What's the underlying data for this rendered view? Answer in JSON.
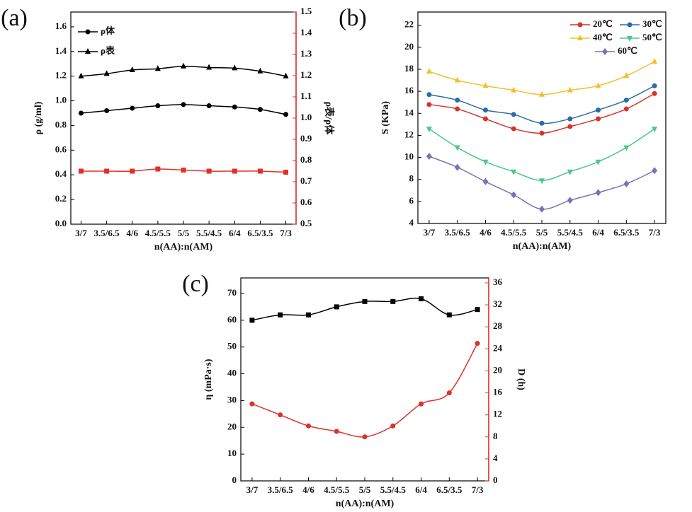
{
  "chart_data": [
    {
      "type": "line",
      "title": "(a)",
      "x_label": "n(AA):n(AM)",
      "y_label": "ρ (g/ml)",
      "y2_label": "ρ表/ρ体",
      "categories": [
        "3/7",
        "3.5/6.5",
        "4/6",
        "4.5/5.5",
        "5/5",
        "5.5/4.5",
        "6/4",
        "6.5/3.5",
        "7/3"
      ],
      "ylim": [
        0,
        1.72
      ],
      "yticks": [
        {
          "value": 0,
          "label": "0.0"
        },
        0.2,
        0.4,
        0.6,
        0.8,
        {
          "value": 1,
          "label": "1.0"
        },
        1.2,
        1.4,
        1.6
      ],
      "y2lim": [
        0.5,
        1.5
      ],
      "y2ticks": [
        0.5,
        0.6,
        0.7,
        0.8,
        0.9,
        {
          "value": 1,
          "label": "1.0"
        },
        1.1,
        1.2,
        1.3,
        1.4,
        1.5
      ],
      "y2_color": "#e0302a",
      "legend": "upper left",
      "series": [
        {
          "name": "ρ体",
          "color": "#000000",
          "marker": "circle",
          "values": [
            0.9,
            0.92,
            0.94,
            0.96,
            0.97,
            0.96,
            0.95,
            0.93,
            0.89
          ]
        },
        {
          "name": "ρ表",
          "color": "#000000",
          "marker": "triangle",
          "values": [
            1.2,
            1.22,
            1.25,
            1.26,
            1.28,
            1.27,
            1.265,
            1.24,
            1.2
          ]
        },
        {
          "color": "#e0302a",
          "marker": "square",
          "axis": "y2",
          "values": [
            0.75,
            0.75,
            0.75,
            0.76,
            0.755,
            0.75,
            0.75,
            0.75,
            0.745
          ]
        }
      ]
    },
    {
      "type": "line",
      "title": "(b)",
      "x_label": "n(AA):n(AM)",
      "y_label": "S (KPa)",
      "categories": [
        "3/7",
        "3.5/6.5",
        "4/6",
        "4.5/5.5",
        "5/5",
        "5.5/4.5",
        "6/4",
        "6.5/3.5",
        "7/3"
      ],
      "ylim": [
        4,
        23.2
      ],
      "yticks": [
        4,
        6,
        8,
        10,
        12,
        14,
        16,
        18,
        20,
        22
      ],
      "legend": "upper right",
      "series": [
        {
          "name": "20℃",
          "color": "#d8322c",
          "marker": "circle",
          "values": [
            14.8,
            14.4,
            13.5,
            12.6,
            12.2,
            12.8,
            13.5,
            14.4,
            15.8
          ]
        },
        {
          "name": "30℃",
          "color": "#2f6aa8",
          "marker": "circle",
          "values": [
            15.7,
            15.2,
            14.3,
            13.9,
            13.1,
            13.5,
            14.3,
            15.2,
            16.5
          ]
        },
        {
          "name": "40℃",
          "color": "#f2c02c",
          "marker": "triangle",
          "values": [
            17.8,
            17.0,
            16.5,
            16.1,
            15.7,
            16.1,
            16.5,
            17.4,
            18.7
          ]
        },
        {
          "name": "50℃",
          "color": "#4cc88a",
          "marker": "triangle-down",
          "values": [
            12.6,
            10.9,
            9.6,
            8.7,
            7.9,
            8.7,
            9.6,
            10.9,
            12.6
          ]
        },
        {
          "name": "60℃",
          "color": "#7a72b8",
          "marker": "diamond",
          "values": [
            10.1,
            9.1,
            7.8,
            6.6,
            5.3,
            6.1,
            6.8,
            7.6,
            8.8
          ]
        }
      ]
    },
    {
      "type": "line",
      "title": "(c)",
      "x_label": "n(AA):n(AM)",
      "y_label": "η (mPa·s)",
      "y2_label": "D (h)",
      "categories": [
        "3/7",
        "3.5/6.5",
        "4/6",
        "4.5/5.5",
        "5/5",
        "5.5/4.5",
        "6/4",
        "6.5/3.5",
        "7/3"
      ],
      "ylim": [
        0,
        75.8
      ],
      "yticks": [
        0,
        10,
        20,
        30,
        40,
        50,
        60,
        70
      ],
      "y2lim": [
        0,
        36.9
      ],
      "y2ticks": [
        0,
        4,
        8,
        12,
        16,
        20,
        24,
        28,
        32,
        36
      ],
      "y2_color": "#e0302a",
      "series": [
        {
          "color": "#000000",
          "marker": "square",
          "values": [
            60,
            62,
            62,
            65,
            67,
            67,
            68,
            62,
            64
          ]
        },
        {
          "color": "#e0302a",
          "marker": "circle",
          "axis": "y2",
          "values": [
            14,
            12,
            10,
            9,
            8,
            10,
            14,
            16,
            25
          ]
        }
      ]
    }
  ]
}
